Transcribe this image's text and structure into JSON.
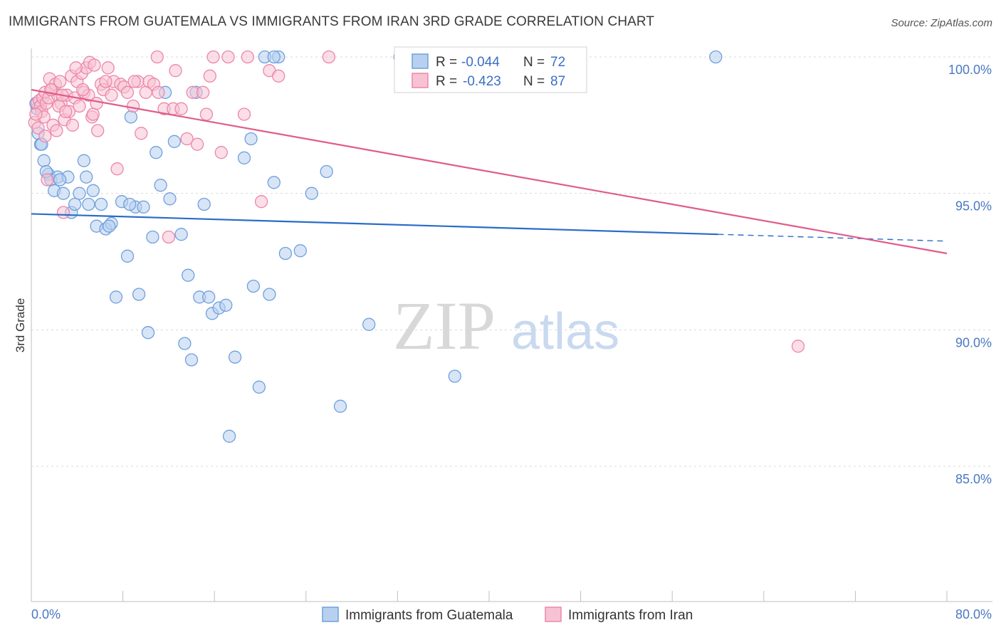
{
  "header": {
    "title": "IMMIGRANTS FROM GUATEMALA VS IMMIGRANTS FROM IRAN 3RD GRADE CORRELATION CHART",
    "source": "Source: ZipAtlas.com"
  },
  "watermark": {
    "zip": "ZIP",
    "atlas": "atlas"
  },
  "colors": {
    "blue": "#6fa0dc",
    "blue_fill": "#b8d0f0",
    "blue_line": "#2a6cc8",
    "pink": "#ec87a8",
    "pink_fill": "#f7c3d4",
    "pink_line": "#e05b8b",
    "tick_text": "#4a78c2",
    "grid": "#d9d9d9"
  },
  "stats_box": {
    "rows": [
      {
        "r_label": "R =",
        "r_value": "-0.044",
        "n_label": "N =",
        "n_value": "72"
      },
      {
        "r_label": "R =",
        "r_value": "-0.423",
        "n_label": "N =",
        "n_value": "87"
      }
    ]
  },
  "chart_data": {
    "type": "scatter",
    "title": "IMMIGRANTS FROM GUATEMALA VS IMMIGRANTS FROM IRAN 3RD GRADE CORRELATION CHART",
    "xlabel": "",
    "ylabel": "3rd Grade",
    "xlim": [
      0,
      80
    ],
    "ylim": [
      80.2,
      100.8
    ],
    "x_tick_labels": {
      "min": "0.0%",
      "max": "80.0%"
    },
    "y_ticks": [
      {
        "value": 100,
        "label": "100.0%"
      },
      {
        "value": 95,
        "label": "95.0%"
      },
      {
        "value": 90,
        "label": "90.0%"
      },
      {
        "value": 85,
        "label": "85.0%"
      }
    ],
    "grid": true,
    "legend_position": "bottom-center",
    "series": [
      {
        "name": "Immigrants from Guatemala",
        "color": "blue",
        "trend": {
          "x_start": 0,
          "y_start": 94.25,
          "x_solid_end": 60,
          "y_solid_end": 93.5,
          "x_end": 80,
          "y_end": 93.25
        },
        "points": [
          [
            0.5,
            98.1
          ],
          [
            0.6,
            97.2
          ],
          [
            0.8,
            96.8
          ],
          [
            1.1,
            96.2
          ],
          [
            1.5,
            95.7
          ],
          [
            1.7,
            95.5
          ],
          [
            2.0,
            95.1
          ],
          [
            2.3,
            95.6
          ],
          [
            2.8,
            95.0
          ],
          [
            3.2,
            95.6
          ],
          [
            3.5,
            94.3
          ],
          [
            3.8,
            94.6
          ],
          [
            4.2,
            95.0
          ],
          [
            4.6,
            96.2
          ],
          [
            5.0,
            94.6
          ],
          [
            5.4,
            95.1
          ],
          [
            5.7,
            93.8
          ],
          [
            6.1,
            94.6
          ],
          [
            6.5,
            93.7
          ],
          [
            7.0,
            93.9
          ],
          [
            7.4,
            91.2
          ],
          [
            7.9,
            94.7
          ],
          [
            8.4,
            92.7
          ],
          [
            8.7,
            97.8
          ],
          [
            9.1,
            94.5
          ],
          [
            9.4,
            91.3
          ],
          [
            9.8,
            94.5
          ],
          [
            10.2,
            89.9
          ],
          [
            10.6,
            93.4
          ],
          [
            10.9,
            96.5
          ],
          [
            11.3,
            95.3
          ],
          [
            11.7,
            98.7
          ],
          [
            12.1,
            94.8
          ],
          [
            12.5,
            96.9
          ],
          [
            13.1,
            93.5
          ],
          [
            13.4,
            89.5
          ],
          [
            13.7,
            92.0
          ],
          [
            14.0,
            88.9
          ],
          [
            14.4,
            98.7
          ],
          [
            14.7,
            91.2
          ],
          [
            15.1,
            94.6
          ],
          [
            15.5,
            91.2
          ],
          [
            15.8,
            90.6
          ],
          [
            16.4,
            90.8
          ],
          [
            17.0,
            90.9
          ],
          [
            17.3,
            86.1
          ],
          [
            17.8,
            89.0
          ],
          [
            18.6,
            96.3
          ],
          [
            19.2,
            97.0
          ],
          [
            19.4,
            91.6
          ],
          [
            19.9,
            87.9
          ],
          [
            20.4,
            100.0
          ],
          [
            20.8,
            91.3
          ],
          [
            21.2,
            95.4
          ],
          [
            21.6,
            100.0
          ],
          [
            21.2,
            100.0
          ],
          [
            22.2,
            92.8
          ],
          [
            23.5,
            92.9
          ],
          [
            24.5,
            95.0
          ],
          [
            25.8,
            95.8
          ],
          [
            27.0,
            87.2
          ],
          [
            29.5,
            90.2
          ],
          [
            32.2,
            100.0
          ],
          [
            37.0,
            88.3
          ],
          [
            59.8,
            100.0
          ],
          [
            0.4,
            98.3
          ],
          [
            0.9,
            96.8
          ],
          [
            1.3,
            95.8
          ],
          [
            2.5,
            95.5
          ],
          [
            4.8,
            95.6
          ],
          [
            6.8,
            93.8
          ],
          [
            8.6,
            94.6
          ]
        ]
      },
      {
        "name": "Immigrants from Iran",
        "color": "pink",
        "trend": {
          "x_start": 0,
          "y_start": 98.8,
          "x_end": 80,
          "y_end": 92.8
        },
        "points": [
          [
            0.3,
            97.6
          ],
          [
            0.5,
            98.3
          ],
          [
            0.6,
            97.4
          ],
          [
            0.7,
            98.4
          ],
          [
            0.8,
            98.2
          ],
          [
            0.9,
            98.0
          ],
          [
            1.0,
            98.5
          ],
          [
            1.1,
            97.8
          ],
          [
            1.2,
            98.7
          ],
          [
            1.3,
            98.3
          ],
          [
            1.4,
            95.5
          ],
          [
            1.5,
            98.5
          ],
          [
            1.6,
            99.2
          ],
          [
            1.8,
            98.8
          ],
          [
            1.9,
            97.5
          ],
          [
            2.1,
            99.0
          ],
          [
            2.2,
            97.3
          ],
          [
            2.3,
            98.6
          ],
          [
            2.5,
            99.1
          ],
          [
            2.6,
            98.3
          ],
          [
            2.8,
            94.3
          ],
          [
            2.9,
            97.7
          ],
          [
            3.1,
            98.6
          ],
          [
            3.3,
            98.0
          ],
          [
            3.5,
            99.3
          ],
          [
            3.6,
            97.5
          ],
          [
            3.8,
            98.5
          ],
          [
            4.0,
            99.1
          ],
          [
            4.2,
            98.2
          ],
          [
            4.4,
            99.4
          ],
          [
            4.6,
            98.7
          ],
          [
            4.8,
            99.6
          ],
          [
            5.0,
            98.6
          ],
          [
            5.1,
            99.8
          ],
          [
            5.3,
            97.8
          ],
          [
            5.5,
            99.7
          ],
          [
            5.7,
            98.3
          ],
          [
            5.8,
            97.3
          ],
          [
            6.1,
            99.0
          ],
          [
            6.3,
            98.8
          ],
          [
            6.7,
            99.6
          ],
          [
            7.0,
            98.6
          ],
          [
            7.2,
            99.1
          ],
          [
            7.5,
            95.9
          ],
          [
            7.8,
            99.0
          ],
          [
            8.1,
            98.9
          ],
          [
            8.4,
            98.7
          ],
          [
            8.9,
            98.2
          ],
          [
            9.3,
            99.1
          ],
          [
            9.6,
            97.2
          ],
          [
            10.0,
            98.7
          ],
          [
            10.3,
            99.1
          ],
          [
            10.7,
            99.0
          ],
          [
            11.1,
            98.7
          ],
          [
            11.6,
            98.1
          ],
          [
            12.0,
            93.4
          ],
          [
            12.4,
            98.1
          ],
          [
            12.6,
            99.5
          ],
          [
            13.1,
            98.1
          ],
          [
            13.6,
            97.0
          ],
          [
            14.1,
            98.7
          ],
          [
            14.5,
            96.8
          ],
          [
            15.0,
            98.7
          ],
          [
            15.3,
            97.9
          ],
          [
            15.6,
            99.3
          ],
          [
            15.9,
            100.0
          ],
          [
            16.6,
            96.5
          ],
          [
            17.2,
            100.0
          ],
          [
            18.6,
            97.9
          ],
          [
            18.9,
            100.0
          ],
          [
            20.1,
            94.7
          ],
          [
            20.8,
            99.5
          ],
          [
            21.6,
            99.3
          ],
          [
            26.0,
            100.0
          ],
          [
            67.0,
            89.4
          ],
          [
            11.0,
            100.0
          ],
          [
            1.7,
            98.8
          ],
          [
            2.4,
            98.2
          ],
          [
            3.0,
            98.0
          ],
          [
            4.5,
            98.8
          ],
          [
            6.5,
            99.1
          ],
          [
            0.4,
            97.9
          ],
          [
            1.2,
            97.1
          ],
          [
            2.7,
            98.6
          ],
          [
            3.9,
            99.6
          ],
          [
            5.4,
            97.9
          ],
          [
            9.0,
            99.1
          ]
        ]
      }
    ]
  },
  "legend": {
    "items": [
      {
        "label": "Immigrants from Guatemala",
        "color": "blue"
      },
      {
        "label": "Immigrants from Iran",
        "color": "pink"
      }
    ]
  }
}
